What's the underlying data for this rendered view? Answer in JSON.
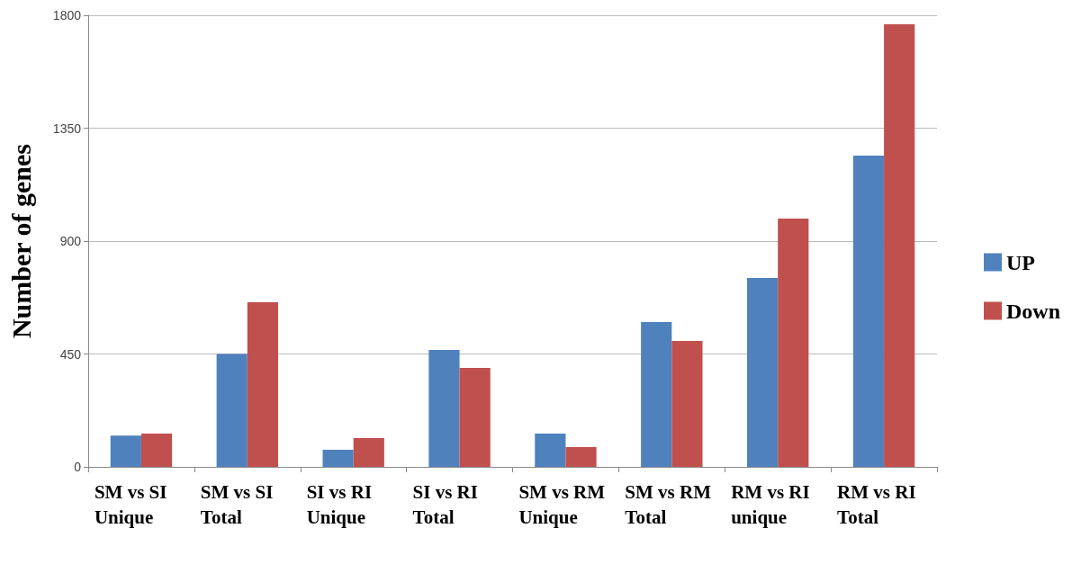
{
  "chart_data": {
    "type": "bar",
    "ylabel": "Number of genes",
    "categories": [
      "SM vs SI Unique",
      "SM vs SI Total",
      "SI vs RI Unique",
      "SI vs RI Total",
      "SM vs RM Unique",
      "SM vs RM Total",
      "RM vs RI unique",
      "RM vs RI Total"
    ],
    "series": [
      {
        "name": "UP",
        "color": "#4f81bd",
        "values": [
          125,
          450,
          68,
          466,
          133,
          577,
          753,
          1241
        ]
      },
      {
        "name": "Down",
        "color": "#c0504d",
        "values": [
          133,
          656,
          115,
          394,
          79,
          502,
          990,
          1764
        ]
      }
    ],
    "ylim": [
      0,
      1800
    ],
    "yticks": [
      0,
      450,
      900,
      1350,
      1800
    ],
    "grid": "y",
    "legend": "right"
  }
}
